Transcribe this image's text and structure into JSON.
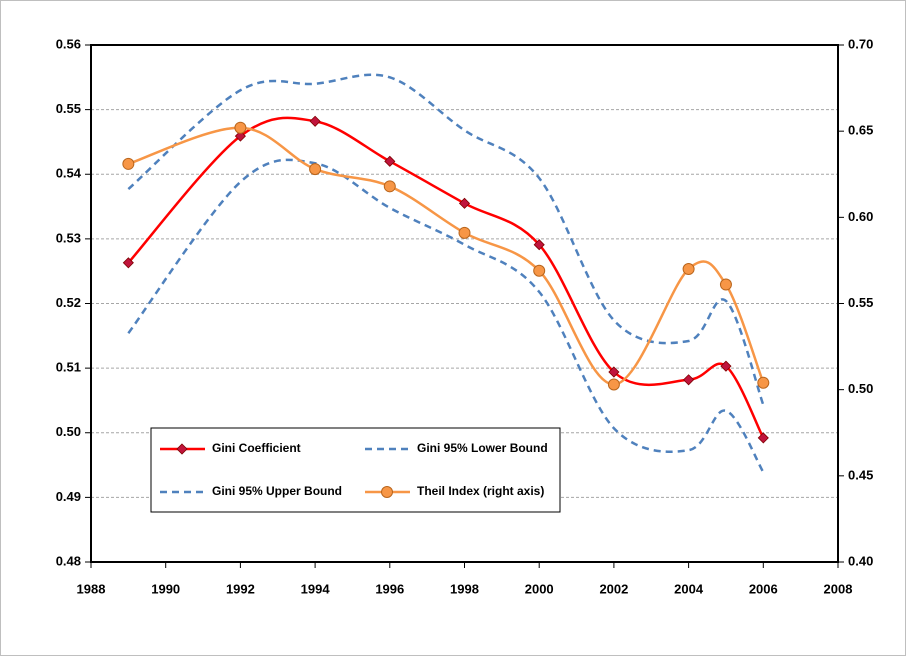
{
  "chart_data": {
    "type": "line",
    "x": [
      1989,
      1992,
      1994,
      1996,
      1998,
      2000,
      2002,
      2004,
      2005,
      2006
    ],
    "series": [
      {
        "name": "Gini Coefficient",
        "color": "#ff0000",
        "marker": "diamond",
        "marker_color": "#c0143c",
        "dashed": false,
        "values": [
          0.5263,
          0.5459,
          0.5482,
          0.542,
          0.5355,
          0.5291,
          0.5094,
          0.5082,
          0.5103,
          0.4992
        ]
      },
      {
        "name": "Gini 95% Lower Bound",
        "color": "#4f81bd",
        "marker": null,
        "dashed": true,
        "values": [
          0.5154,
          0.5388,
          0.5417,
          0.5348,
          0.5291,
          0.5218,
          0.5007,
          0.4973,
          0.5034,
          0.4939
        ]
      },
      {
        "name": "Gini 95% Upper Bound",
        "color": "#4f81bd",
        "marker": null,
        "dashed": true,
        "values": [
          0.5377,
          0.553,
          0.554,
          0.555,
          0.5468,
          0.5394,
          0.5174,
          0.5142,
          0.5204,
          0.5043
        ]
      },
      {
        "name": "Theil Index (right axis)",
        "color": "#f79646",
        "marker": "circle",
        "marker_color": "#f79646",
        "dashed": false,
        "axis": "y2",
        "values": [
          0.631,
          0.652,
          0.628,
          0.618,
          0.591,
          0.569,
          0.503,
          0.57,
          0.561,
          0.504
        ]
      }
    ],
    "xlim": [
      1988,
      2008
    ],
    "xticks": [
      1988,
      1990,
      1992,
      1994,
      1996,
      1998,
      2000,
      2002,
      2004,
      2006,
      2008
    ],
    "ylim": [
      0.48,
      0.56
    ],
    "yticks": [
      0.48,
      0.49,
      {
        "value": 0.5,
        "label": "0.50"
      },
      0.51,
      0.52,
      0.53,
      0.54,
      0.55,
      0.56
    ],
    "y2lim": [
      0.4,
      0.7
    ],
    "y2ticks": [
      {
        "value": 0.4,
        "label": "0.40"
      },
      0.45,
      {
        "value": 0.5,
        "label": "0.50"
      },
      0.55,
      {
        "value": 0.6,
        "label": "0.60"
      },
      0.65,
      {
        "value": 0.7,
        "label": "0.70"
      }
    ],
    "grid": true
  }
}
